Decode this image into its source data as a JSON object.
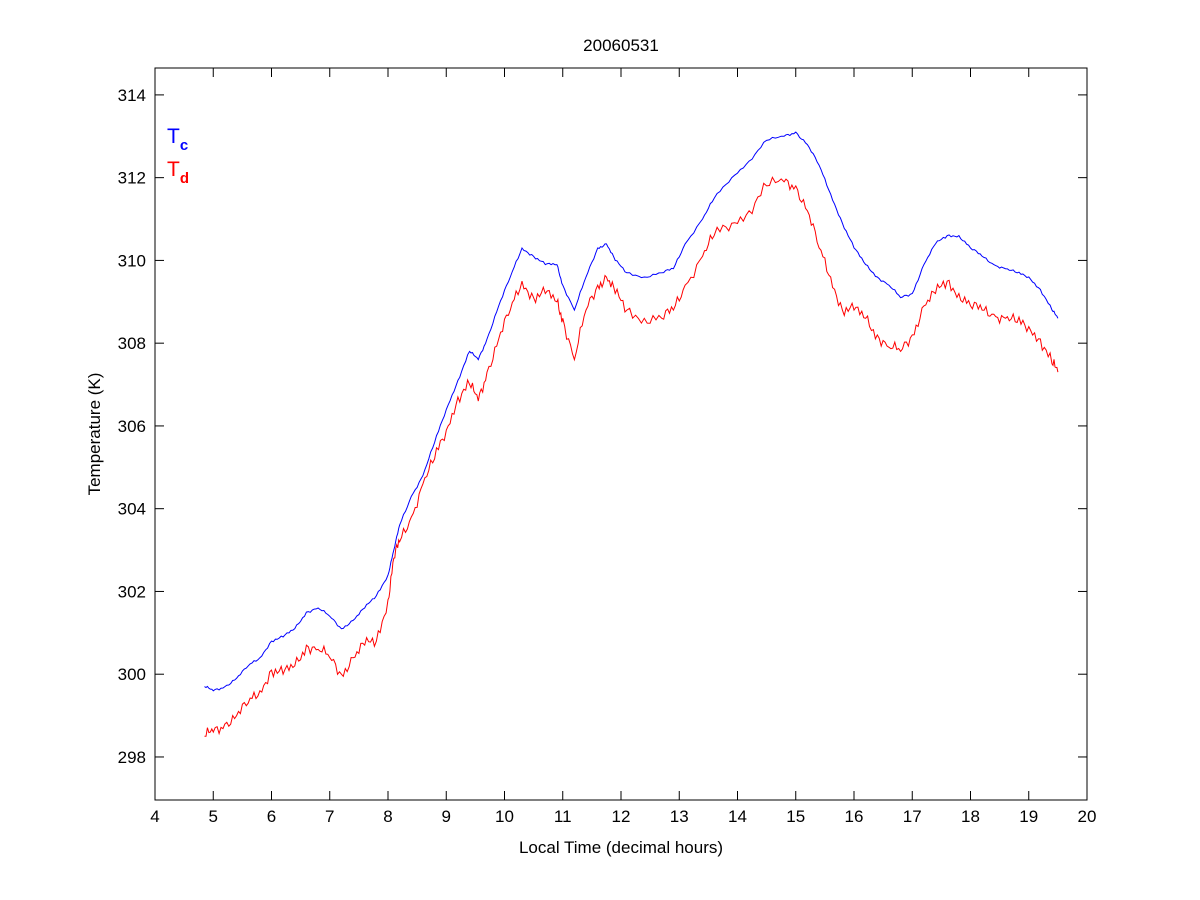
{
  "chart_data": {
    "type": "line",
    "title": "20060531",
    "xlabel": "Local Time (decimal hours)",
    "ylabel": "Temperature (K)",
    "xlim": [
      4,
      20
    ],
    "ylim": [
      296.96,
      314.65
    ],
    "xticks": [
      4,
      5,
      6,
      7,
      8,
      9,
      10,
      11,
      12,
      13,
      14,
      15,
      16,
      17,
      18,
      19,
      20
    ],
    "yticks": [
      298,
      300,
      302,
      304,
      306,
      308,
      310,
      312,
      314
    ],
    "grid": false,
    "legend_position": "top-left",
    "series": [
      {
        "name": "Tc",
        "label_main": "T",
        "label_sub": "c",
        "color": "#0000ff",
        "x": [
          4.85,
          5.0,
          5.2,
          5.4,
          5.6,
          5.8,
          6.0,
          6.2,
          6.4,
          6.6,
          6.8,
          7.0,
          7.2,
          7.4,
          7.6,
          7.8,
          8.0,
          8.1,
          8.2,
          8.4,
          8.6,
          8.8,
          9.0,
          9.2,
          9.4,
          9.55,
          9.7,
          9.9,
          10.1,
          10.3,
          10.5,
          10.7,
          10.9,
          11.0,
          11.2,
          11.4,
          11.6,
          11.75,
          11.9,
          12.1,
          12.4,
          12.7,
          12.9,
          13.1,
          13.4,
          13.6,
          13.9,
          14.2,
          14.5,
          14.8,
          15.0,
          15.2,
          15.4,
          15.6,
          15.8,
          16.0,
          16.2,
          16.4,
          16.6,
          16.8,
          17.0,
          17.2,
          17.4,
          17.6,
          17.8,
          18.0,
          18.2,
          18.4,
          18.6,
          18.8,
          19.0,
          19.2,
          19.4,
          19.5
        ],
        "y": [
          299.7,
          299.6,
          299.7,
          299.9,
          300.2,
          300.4,
          300.8,
          300.9,
          301.1,
          301.5,
          301.6,
          301.4,
          301.1,
          301.3,
          301.6,
          301.9,
          302.4,
          303.0,
          303.6,
          304.3,
          304.8,
          305.6,
          306.4,
          307.1,
          307.8,
          307.6,
          308.1,
          308.9,
          309.6,
          310.3,
          310.1,
          309.9,
          309.9,
          309.4,
          308.8,
          309.6,
          310.3,
          310.4,
          310.0,
          309.7,
          309.6,
          309.7,
          309.8,
          310.4,
          311.0,
          311.5,
          312.0,
          312.4,
          312.9,
          313.0,
          313.1,
          312.8,
          312.3,
          311.6,
          310.9,
          310.3,
          309.9,
          309.6,
          309.4,
          309.1,
          309.2,
          309.9,
          310.4,
          310.6,
          310.6,
          310.3,
          310.1,
          309.9,
          309.8,
          309.7,
          309.6,
          309.3,
          308.8,
          308.6
        ]
      },
      {
        "name": "Td",
        "label_main": "T",
        "label_sub": "d",
        "color": "#ff0000",
        "x": [
          4.85,
          5.0,
          5.2,
          5.4,
          5.6,
          5.8,
          6.0,
          6.2,
          6.4,
          6.6,
          6.8,
          7.0,
          7.2,
          7.4,
          7.6,
          7.8,
          8.0,
          8.1,
          8.2,
          8.4,
          8.6,
          8.8,
          9.0,
          9.2,
          9.4,
          9.55,
          9.7,
          9.9,
          10.1,
          10.3,
          10.5,
          10.7,
          10.9,
          11.0,
          11.2,
          11.4,
          11.6,
          11.75,
          11.9,
          12.1,
          12.4,
          12.7,
          12.9,
          13.1,
          13.4,
          13.6,
          13.9,
          14.2,
          14.5,
          14.8,
          15.0,
          15.2,
          15.4,
          15.6,
          15.8,
          16.0,
          16.2,
          16.4,
          16.6,
          16.8,
          17.0,
          17.2,
          17.4,
          17.6,
          17.8,
          18.0,
          18.2,
          18.4,
          18.6,
          18.8,
          19.0,
          19.2,
          19.4,
          19.5
        ],
        "y": [
          298.5,
          298.6,
          298.8,
          299.0,
          299.3,
          299.6,
          300.1,
          300.0,
          300.2,
          300.7,
          300.6,
          300.4,
          300.0,
          300.4,
          300.7,
          300.8,
          301.8,
          302.8,
          303.2,
          303.8,
          304.6,
          305.2,
          305.9,
          306.7,
          307.0,
          306.6,
          307.3,
          308.1,
          308.8,
          309.5,
          309.1,
          309.2,
          309.0,
          308.6,
          307.6,
          308.8,
          309.4,
          309.6,
          309.2,
          308.8,
          308.6,
          308.6,
          308.8,
          309.4,
          310.1,
          310.6,
          310.9,
          311.2,
          311.8,
          311.9,
          311.8,
          311.2,
          310.3,
          309.6,
          308.8,
          308.8,
          308.6,
          308.2,
          307.9,
          307.8,
          308.2,
          308.9,
          309.2,
          309.5,
          309.2,
          308.9,
          308.8,
          308.7,
          308.6,
          308.5,
          308.4,
          308.1,
          307.5,
          307.3
        ]
      }
    ]
  }
}
